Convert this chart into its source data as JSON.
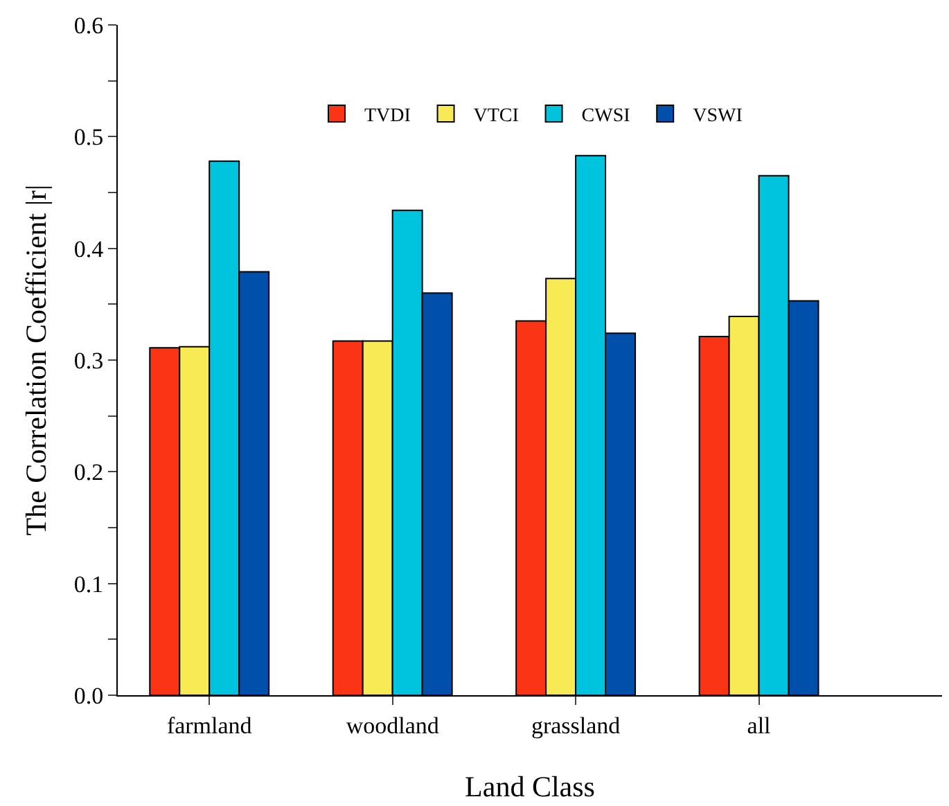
{
  "chart_data": {
    "type": "bar",
    "xlabel": "Land Class",
    "ylabel": "The Correlation Coefficient |r|",
    "categories": [
      "farmland",
      "woodland",
      "grassland",
      "all"
    ],
    "series": [
      {
        "name": "TVDI",
        "color": "#fa3415",
        "values": [
          0.311,
          0.317,
          0.335,
          0.321
        ]
      },
      {
        "name": "VTCI",
        "color": "#f7ea55",
        "values": [
          0.312,
          0.317,
          0.373,
          0.339
        ]
      },
      {
        "name": "CWSI",
        "color": "#00c4de",
        "values": [
          0.478,
          0.434,
          0.483,
          0.465
        ]
      },
      {
        "name": "VSWI",
        "color": "#0050ab",
        "values": [
          0.379,
          0.36,
          0.324,
          0.353
        ]
      }
    ],
    "ylim": [
      0,
      0.6
    ],
    "yticks": [
      {
        "value": 0,
        "label": "0.0"
      },
      {
        "value": 0.05,
        "label": null
      },
      {
        "value": 0.1,
        "label": "0.1"
      },
      {
        "value": 0.15,
        "label": null
      },
      {
        "value": 0.2,
        "label": "0.2"
      },
      {
        "value": 0.25,
        "label": null
      },
      {
        "value": 0.3,
        "label": "0.3"
      },
      {
        "value": 0.35,
        "label": null
      },
      {
        "value": 0.4,
        "label": "0.4"
      },
      {
        "value": 0.45,
        "label": null
      },
      {
        "value": 0.5,
        "label": "0.5"
      },
      {
        "value": 0.55,
        "label": null
      },
      {
        "value": 0.6,
        "label": "0.6"
      }
    ],
    "grid": false,
    "legend": "top"
  }
}
